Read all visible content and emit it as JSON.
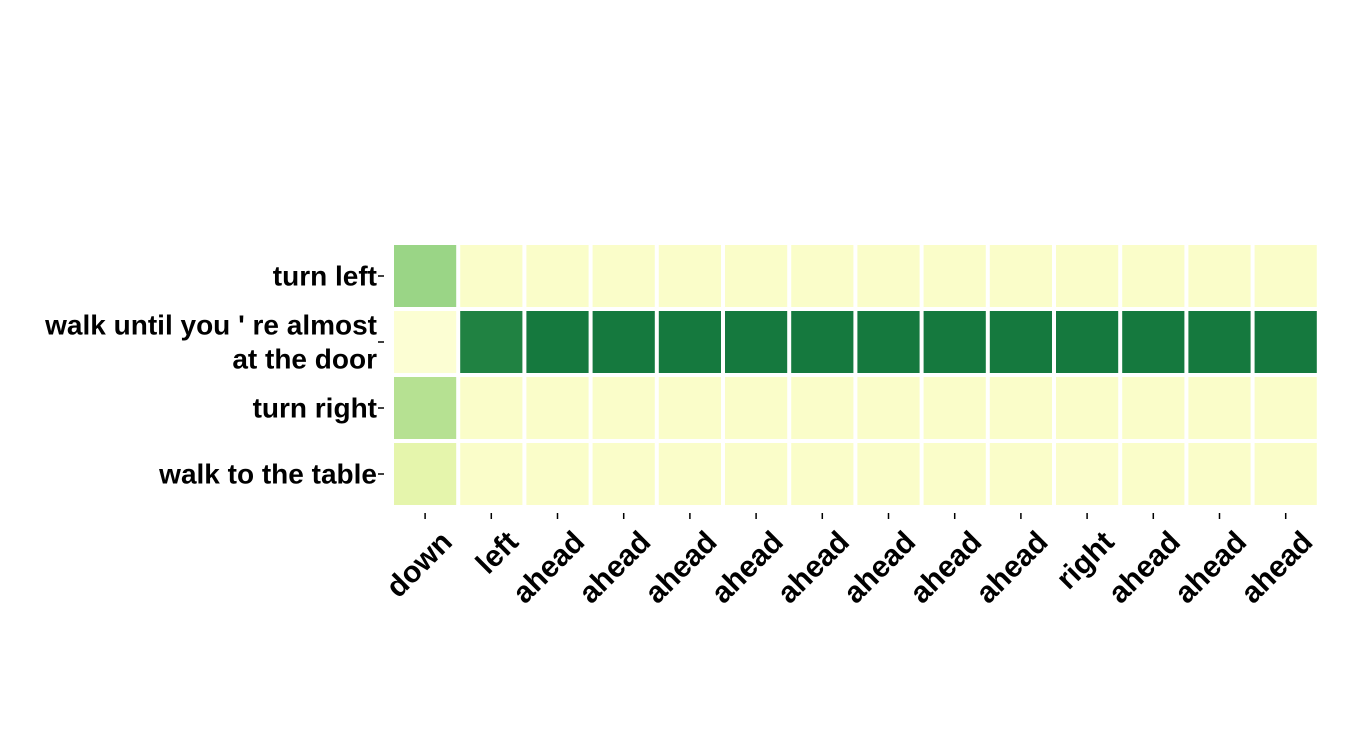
{
  "chart_data": {
    "type": "heatmap",
    "title": "",
    "xlabel": "",
    "ylabel": "",
    "colormap": "YlGn",
    "value_range": [
      0,
      1
    ],
    "grid": false,
    "legend": "none",
    "rows": [
      [
        "turn left"
      ],
      [
        "walk until you ' re almost",
        "at the door"
      ],
      [
        "turn right"
      ],
      [
        "walk to the table"
      ]
    ],
    "columns": [
      "down",
      "left",
      "ahead",
      "ahead",
      "ahead",
      "ahead",
      "ahead",
      "ahead",
      "ahead",
      "ahead",
      "right",
      "ahead",
      "ahead",
      "ahead"
    ],
    "values": [
      [
        0.42,
        0.08,
        0.08,
        0.08,
        0.08,
        0.08,
        0.08,
        0.08,
        0.08,
        0.08,
        0.08,
        0.08,
        0.08,
        0.08
      ],
      [
        0.05,
        0.76,
        0.8,
        0.8,
        0.8,
        0.8,
        0.8,
        0.8,
        0.8,
        0.8,
        0.8,
        0.8,
        0.8,
        0.8
      ],
      [
        0.35,
        0.08,
        0.08,
        0.08,
        0.08,
        0.08,
        0.08,
        0.08,
        0.08,
        0.08,
        0.08,
        0.08,
        0.08,
        0.08
      ],
      [
        0.2,
        0.08,
        0.08,
        0.08,
        0.08,
        0.08,
        0.08,
        0.08,
        0.08,
        0.08,
        0.07,
        0.08,
        0.08,
        0.08
      ]
    ]
  }
}
